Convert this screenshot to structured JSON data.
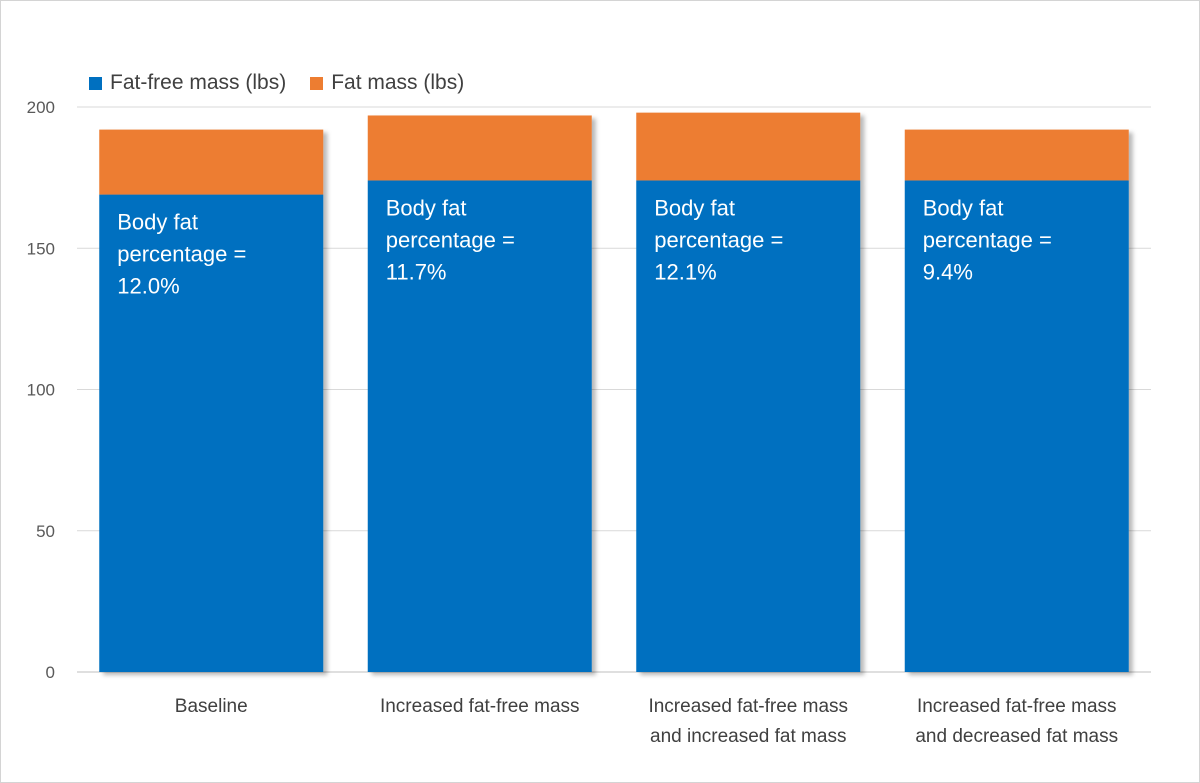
{
  "chart_data": {
    "type": "bar",
    "stacked": true,
    "title": "",
    "xlabel": "",
    "ylabel": "",
    "ylim": [
      0,
      200
    ],
    "yticks": [
      0,
      50,
      100,
      150,
      200
    ],
    "grid": true,
    "legend_position": "top-left",
    "categories": [
      [
        "Baseline"
      ],
      [
        "Increased fat-free mass"
      ],
      [
        "Increased fat-free mass",
        "and increased fat mass"
      ],
      [
        "Increased fat-free mass",
        "and decreased fat mass"
      ]
    ],
    "series": [
      {
        "name": "Fat-free mass (lbs)",
        "color": "#0070C0",
        "values": [
          169,
          174,
          174,
          174
        ]
      },
      {
        "name": "Fat mass (lbs)",
        "color": "#ED7D31",
        "values": [
          23,
          23,
          24,
          18
        ]
      }
    ],
    "annotations": [
      [
        "Body fat",
        "percentage =",
        "12.0%"
      ],
      [
        "Body fat",
        "percentage =",
        "11.7%"
      ],
      [
        "Body fat",
        "percentage =",
        "12.1%"
      ],
      [
        "Body fat",
        "percentage =",
        "9.4%"
      ]
    ],
    "colors": {
      "grid": "#d9d9d9",
      "axis": "#bfbfbf",
      "annotation_text": "#ffffff"
    }
  }
}
